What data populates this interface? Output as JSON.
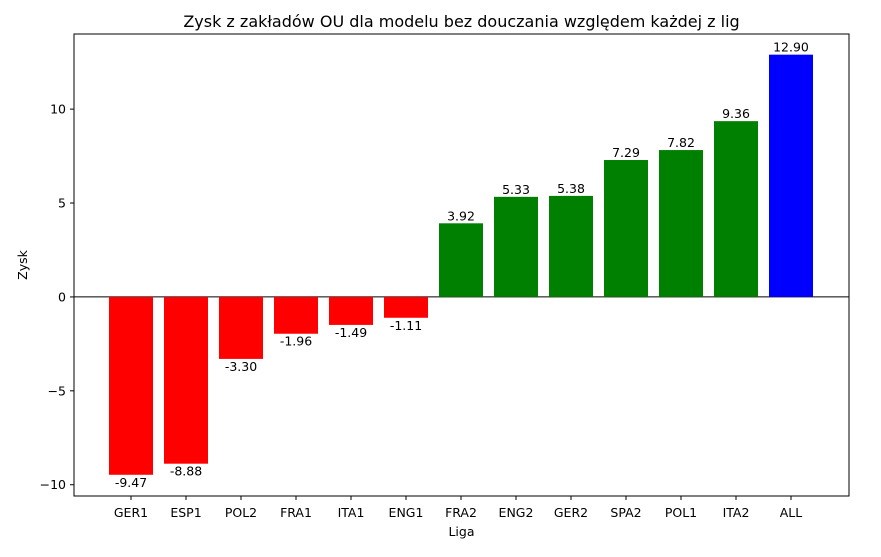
{
  "chart_data": {
    "type": "bar",
    "title": "Zysk z zakładów OU dla modelu bez douczania względem każdej z lig",
    "xlabel": "Liga",
    "ylabel": "Zysk",
    "categories": [
      "GER1",
      "ESP1",
      "POL2",
      "FRA1",
      "ITA1",
      "ENG1",
      "FRA2",
      "ENG2",
      "GER2",
      "SPA2",
      "POL1",
      "ITA2",
      "ALL"
    ],
    "values": [
      -9.47,
      -8.88,
      -3.3,
      -1.96,
      -1.49,
      -1.11,
      3.92,
      5.33,
      5.38,
      7.29,
      7.82,
      9.36,
      12.9
    ],
    "value_labels": [
      "-9.47",
      "-8.88",
      "-3.30",
      "-1.96",
      "-1.49",
      "-1.11",
      "3.92",
      "5.33",
      "5.38",
      "7.29",
      "7.82",
      "9.36",
      "12.90"
    ],
    "colors": [
      "#ff0000",
      "#ff0000",
      "#ff0000",
      "#ff0000",
      "#ff0000",
      "#ff0000",
      "#008000",
      "#008000",
      "#008000",
      "#008000",
      "#008000",
      "#008000",
      "#0000ff"
    ],
    "ylim": [
      -10.6,
      14.0
    ],
    "yticks": [
      -10,
      -5,
      0,
      5,
      10
    ],
    "ytick_labels": [
      "−10",
      "−5",
      "0",
      "5",
      "10"
    ],
    "zero_line": true,
    "grid": false,
    "legend": false
  }
}
